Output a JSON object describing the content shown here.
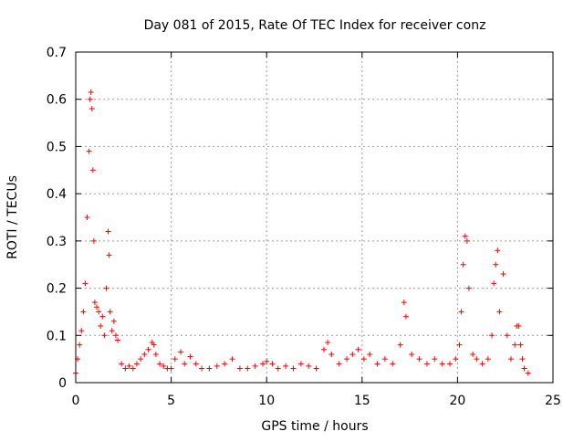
{
  "chart_data": {
    "type": "scatter",
    "title": "Day 081 of 2015, Rate Of TEC Index for receiver conz",
    "xlabel": "GPS time / hours",
    "ylabel": "ROTI / TECUs",
    "xlim": [
      0,
      25
    ],
    "ylim": [
      0,
      0.7
    ],
    "xticks": [
      0,
      5,
      10,
      15,
      20,
      25
    ],
    "xtick_labels": [
      "0",
      "5",
      "10",
      "15",
      "20",
      "25"
    ],
    "yticks": [
      0,
      0.1,
      0.2,
      0.3,
      0.4,
      0.5,
      0.6,
      0.7
    ],
    "ytick_labels": [
      "0",
      "0.1",
      "0.2",
      "0.3",
      "0.4",
      "0.5",
      "0.6",
      "0.7"
    ],
    "grid": true,
    "marker": "+",
    "color": "#ff0000",
    "series": [
      {
        "name": "ROTI",
        "x": [
          0.0,
          0.1,
          0.2,
          0.3,
          0.4,
          0.5,
          0.6,
          0.7,
          0.75,
          0.8,
          0.85,
          0.9,
          0.95,
          1.0,
          1.1,
          1.2,
          1.3,
          1.4,
          1.5,
          1.6,
          1.7,
          1.75,
          1.8,
          1.9,
          2.0,
          2.1,
          2.2,
          2.4,
          2.6,
          2.8,
          3.0,
          3.2,
          3.4,
          3.6,
          3.8,
          4.0,
          4.1,
          4.2,
          4.4,
          4.6,
          4.8,
          5.0,
          5.2,
          5.5,
          5.7,
          6.0,
          6.3,
          6.6,
          7.0,
          7.4,
          7.8,
          8.2,
          8.6,
          9.0,
          9.4,
          9.8,
          10.0,
          10.3,
          10.6,
          11.0,
          11.4,
          11.8,
          12.2,
          12.6,
          13.0,
          13.2,
          13.4,
          13.8,
          14.2,
          14.5,
          14.8,
          15.1,
          15.4,
          15.8,
          16.2,
          16.6,
          17.0,
          17.2,
          17.3,
          17.6,
          18.0,
          18.4,
          18.8,
          19.2,
          19.6,
          19.9,
          20.1,
          20.2,
          20.3,
          20.4,
          20.5,
          20.6,
          20.8,
          21.0,
          21.3,
          21.6,
          21.8,
          21.9,
          22.0,
          22.1,
          22.2,
          22.4,
          22.6,
          22.8,
          23.0,
          23.1,
          23.2,
          23.3,
          23.4,
          23.5,
          23.7
        ],
        "y": [
          0.02,
          0.05,
          0.08,
          0.11,
          0.15,
          0.21,
          0.35,
          0.49,
          0.6,
          0.615,
          0.58,
          0.45,
          0.3,
          0.17,
          0.16,
          0.15,
          0.12,
          0.14,
          0.1,
          0.2,
          0.32,
          0.27,
          0.15,
          0.11,
          0.13,
          0.1,
          0.09,
          0.04,
          0.03,
          0.035,
          0.03,
          0.04,
          0.05,
          0.06,
          0.07,
          0.085,
          0.08,
          0.06,
          0.04,
          0.035,
          0.03,
          0.03,
          0.05,
          0.065,
          0.04,
          0.055,
          0.04,
          0.03,
          0.03,
          0.035,
          0.04,
          0.05,
          0.03,
          0.03,
          0.035,
          0.04,
          0.045,
          0.04,
          0.03,
          0.035,
          0.03,
          0.04,
          0.035,
          0.03,
          0.07,
          0.085,
          0.06,
          0.04,
          0.05,
          0.06,
          0.07,
          0.05,
          0.06,
          0.04,
          0.05,
          0.04,
          0.08,
          0.17,
          0.14,
          0.06,
          0.05,
          0.04,
          0.05,
          0.04,
          0.04,
          0.05,
          0.08,
          0.15,
          0.25,
          0.31,
          0.3,
          0.2,
          0.06,
          0.05,
          0.04,
          0.05,
          0.1,
          0.21,
          0.25,
          0.28,
          0.15,
          0.23,
          0.1,
          0.05,
          0.08,
          0.12,
          0.12,
          0.08,
          0.05,
          0.03,
          0.02
        ]
      }
    ]
  }
}
